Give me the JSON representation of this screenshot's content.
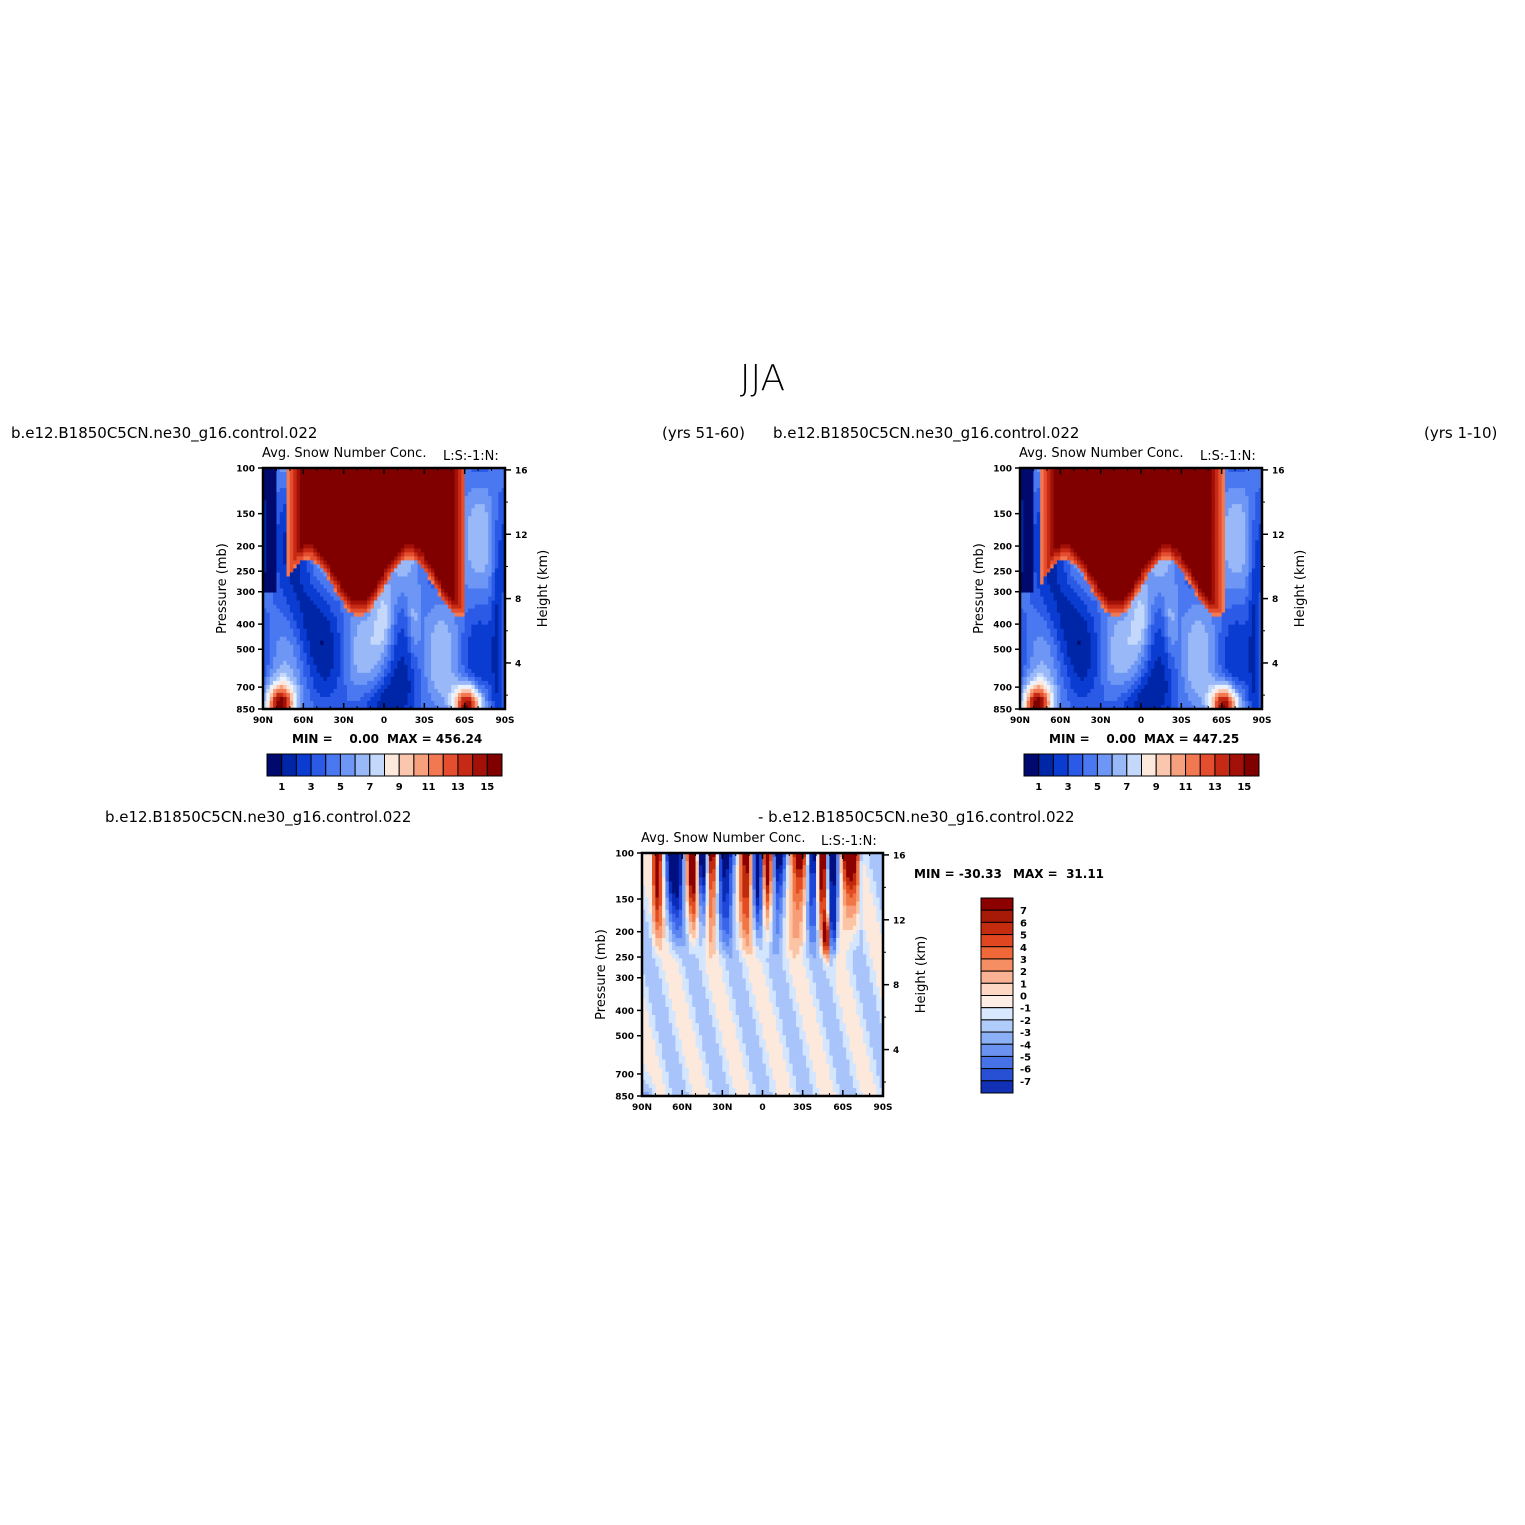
{
  "page_title": "JJA",
  "colors": {
    "abs_levels": [
      "#000a6e",
      "#0026a8",
      "#0a3cd2",
      "#2a5ae6",
      "#4a78f0",
      "#6e96f5",
      "#98b8f8",
      "#c4d8fb",
      "#eaf2fe",
      "#fde8dc",
      "#fbc6ae",
      "#f7a07e",
      "#f27852",
      "#e44e2e",
      "#c62a14",
      "#a21008",
      "#800000"
    ],
    "diff_levels": [
      "#001080",
      "#0a2ab8",
      "#1e46d8",
      "#3a64ea",
      "#5a84f2",
      "#80a4f6",
      "#a8c4fa",
      "#d4e6fe",
      "#fde8dc",
      "#fbc4a4",
      "#f79e78",
      "#f07646",
      "#e24c20",
      "#c02a0c",
      "#8c0000"
    ],
    "frame": "#000000"
  },
  "panels": [
    {
      "case": "b.e12.B1850C5CN.ne30_g16.control.022",
      "years": "(yrs 51-60)",
      "variable_title": "Avg. Snow Number Conc.",
      "units_title": "L:S:-1:N:",
      "min_label": "MIN =    0.00",
      "max_label": "MAX = 456.24",
      "colorbar_labels": [
        "1",
        "3",
        "5",
        "7",
        "9",
        "11",
        "13",
        "15"
      ]
    },
    {
      "case": "b.e12.B1850C5CN.ne30_g16.control.022",
      "years": "(yrs 1-10)",
      "variable_title": "Avg. Snow Number Conc.",
      "units_title": "L:S:-1:N:",
      "min_label": "MIN =    0.00",
      "max_label": "MAX = 447.25",
      "colorbar_labels": [
        "1",
        "3",
        "5",
        "7",
        "9",
        "11",
        "13",
        "15"
      ]
    }
  ],
  "diff_panel": {
    "case_a": "b.e12.B1850C5CN.ne30_g16.control.022",
    "case_b": "- b.e12.B1850C5CN.ne30_g16.control.022",
    "variable_title": "Avg. Snow Number Conc.",
    "units_title": "L:S:-1:N:",
    "min_label": "MIN = -30.33",
    "max_label": "MAX =  31.11",
    "colorbar_labels": [
      "7",
      "6",
      "5",
      "4",
      "3",
      "2",
      "1",
      "0",
      "-1",
      "-2",
      "-3",
      "-4",
      "-5",
      "-6",
      "-7"
    ]
  },
  "chart_data": [
    {
      "type": "heatmap",
      "title": "Avg. Snow Number Conc.",
      "subtitle": "L:S:-1:N:",
      "xlabel": "",
      "ylabel": "Pressure (mb)",
      "y2label": "Height (km)",
      "x_ticks": [
        "90N",
        "60N",
        "30N",
        "0",
        "30S",
        "60S",
        "90S"
      ],
      "x_values": [
        90,
        60,
        30,
        0,
        -30,
        -60,
        -90
      ],
      "y_ticks": [
        "100",
        "150",
        "200",
        "250",
        "300",
        "400",
        "500",
        "700",
        "850"
      ],
      "y_values": [
        100,
        150,
        200,
        250,
        300,
        400,
        500,
        700,
        850
      ],
      "y2_ticks": [
        "16",
        "12",
        "8",
        "4"
      ],
      "y2_values": [
        16,
        12,
        8,
        4
      ],
      "ylim": [
        850,
        100
      ],
      "xlim": [
        90,
        -90
      ],
      "y_scale": "log",
      "contour_levels": [
        1,
        2,
        3,
        4,
        5,
        6,
        7,
        8,
        9,
        10,
        11,
        12,
        13,
        14,
        15,
        16
      ],
      "min": 0.0,
      "max": 456.24
    },
    {
      "type": "heatmap",
      "title": "Avg. Snow Number Conc.",
      "subtitle": "L:S:-1:N:",
      "xlabel": "",
      "ylabel": "Pressure (mb)",
      "y2label": "Height (km)",
      "x_ticks": [
        "90N",
        "60N",
        "30N",
        "0",
        "30S",
        "60S",
        "90S"
      ],
      "x_values": [
        90,
        60,
        30,
        0,
        -30,
        -60,
        -90
      ],
      "y_ticks": [
        "100",
        "150",
        "200",
        "250",
        "300",
        "400",
        "500",
        "700",
        "850"
      ],
      "y_values": [
        100,
        150,
        200,
        250,
        300,
        400,
        500,
        700,
        850
      ],
      "y2_ticks": [
        "16",
        "12",
        "8",
        "4"
      ],
      "y2_values": [
        16,
        12,
        8,
        4
      ],
      "ylim": [
        850,
        100
      ],
      "xlim": [
        90,
        -90
      ],
      "y_scale": "log",
      "contour_levels": [
        1,
        2,
        3,
        4,
        5,
        6,
        7,
        8,
        9,
        10,
        11,
        12,
        13,
        14,
        15,
        16
      ],
      "min": 0.0,
      "max": 447.25
    },
    {
      "type": "heatmap",
      "title": "Avg. Snow Number Conc.",
      "subtitle": "L:S:-1:N:",
      "xlabel": "",
      "ylabel": "Pressure (mb)",
      "y2label": "Height (km)",
      "x_ticks": [
        "90N",
        "60N",
        "30N",
        "0",
        "30S",
        "60S",
        "90S"
      ],
      "x_values": [
        90,
        60,
        30,
        0,
        -30,
        -60,
        -90
      ],
      "y_ticks": [
        "100",
        "150",
        "200",
        "250",
        "300",
        "400",
        "500",
        "700",
        "850"
      ],
      "y_values": [
        100,
        150,
        200,
        250,
        300,
        400,
        500,
        700,
        850
      ],
      "y2_ticks": [
        "16",
        "12",
        "8",
        "4"
      ],
      "y2_values": [
        16,
        12,
        8,
        4
      ],
      "ylim": [
        850,
        100
      ],
      "xlim": [
        90,
        -90
      ],
      "y_scale": "log",
      "contour_levels": [
        -7,
        -6,
        -5,
        -4,
        -3,
        -2,
        -1,
        0,
        1,
        2,
        3,
        4,
        5,
        6,
        7
      ],
      "min": -30.33,
      "max": 31.11
    }
  ]
}
